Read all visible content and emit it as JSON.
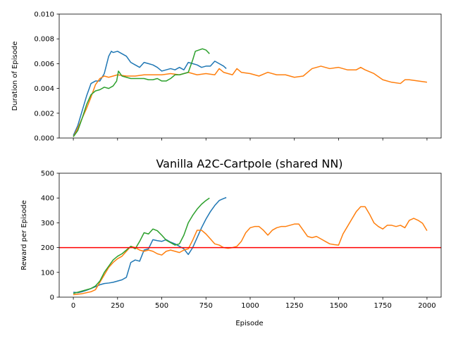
{
  "chart_data": [
    {
      "type": "line",
      "title": "",
      "xlabel": "",
      "ylabel": "Duration of Episode",
      "xlim": [
        -80,
        2080
      ],
      "ylim": [
        0,
        0.01
      ],
      "xticks": [
        0,
        250,
        500,
        750,
        1000,
        1250,
        1500,
        1750,
        2000
      ],
      "xtick_labels_visible": false,
      "yticks": [
        0,
        0.002,
        0.004,
        0.006,
        0.008,
        0.01
      ],
      "ytick_labels": [
        "0.000",
        "0.002",
        "0.004",
        "0.006",
        "0.008",
        "0.010"
      ],
      "grid": false,
      "legend": null,
      "series": [
        {
          "color": "#1f77b4",
          "x": [
            0,
            25,
            50,
            75,
            100,
            125,
            150,
            175,
            200,
            215,
            225,
            250,
            275,
            300,
            325,
            350,
            375,
            400,
            425,
            450,
            475,
            500,
            525,
            550,
            575,
            600,
            625,
            650,
            675,
            700,
            725,
            750,
            775,
            800,
            825,
            850,
            865
          ],
          "y": [
            0.0002,
            0.001,
            0.0022,
            0.0034,
            0.0044,
            0.0046,
            0.0046,
            0.0052,
            0.0066,
            0.007,
            0.0069,
            0.007,
            0.0068,
            0.0066,
            0.0061,
            0.0059,
            0.0057,
            0.0061,
            0.006,
            0.0059,
            0.0057,
            0.0054,
            0.0055,
            0.0056,
            0.0055,
            0.0057,
            0.0055,
            0.0061,
            0.006,
            0.0059,
            0.0057,
            0.0058,
            0.0058,
            0.0062,
            0.006,
            0.0058,
            0.0056
          ]
        },
        {
          "color": "#ff7f0e",
          "x": [
            0,
            25,
            50,
            75,
            100,
            125,
            150,
            175,
            200,
            225,
            250,
            300,
            350,
            400,
            450,
            500,
            550,
            600,
            650,
            700,
            750,
            800,
            825,
            850,
            900,
            925,
            950,
            1000,
            1050,
            1100,
            1150,
            1200,
            1250,
            1300,
            1325,
            1350,
            1400,
            1450,
            1500,
            1550,
            1600,
            1625,
            1650,
            1700,
            1750,
            1800,
            1850,
            1875,
            1900,
            1950,
            2000
          ],
          "y": [
            0.0001,
            0.0008,
            0.0016,
            0.0024,
            0.0033,
            0.0043,
            0.0048,
            0.005,
            0.0049,
            0.005,
            0.0051,
            0.005,
            0.005,
            0.0051,
            0.0051,
            0.0051,
            0.0052,
            0.0051,
            0.0053,
            0.0051,
            0.0052,
            0.0051,
            0.0056,
            0.0053,
            0.0051,
            0.0056,
            0.0053,
            0.0052,
            0.005,
            0.0053,
            0.0051,
            0.0051,
            0.0049,
            0.005,
            0.0053,
            0.0056,
            0.0058,
            0.0056,
            0.0057,
            0.0055,
            0.0055,
            0.0057,
            0.0055,
            0.0052,
            0.0047,
            0.0045,
            0.0044,
            0.0047,
            0.0047,
            0.0046,
            0.0045
          ]
        },
        {
          "color": "#2ca02c",
          "x": [
            0,
            25,
            50,
            75,
            100,
            125,
            150,
            175,
            200,
            225,
            245,
            255,
            275,
            300,
            325,
            350,
            375,
            400,
            425,
            450,
            475,
            500,
            525,
            550,
            575,
            600,
            625,
            650,
            675,
            690,
            710,
            730,
            750,
            770
          ],
          "y": [
            0.0001,
            0.0006,
            0.0016,
            0.0027,
            0.0035,
            0.0038,
            0.0039,
            0.0041,
            0.004,
            0.0042,
            0.0046,
            0.0054,
            0.005,
            0.0049,
            0.0048,
            0.0048,
            0.0048,
            0.0048,
            0.0047,
            0.0047,
            0.0048,
            0.0046,
            0.0046,
            0.0048,
            0.0051,
            0.0051,
            0.0052,
            0.0053,
            0.0063,
            0.007,
            0.0071,
            0.0072,
            0.0071,
            0.0068
          ]
        }
      ]
    },
    {
      "type": "line",
      "title": "Vanilla A2C-Cartpole (shared NN)",
      "xlabel": "Episode",
      "ylabel": "Reward per Episode",
      "xlim": [
        -80,
        2080
      ],
      "ylim": [
        0,
        500
      ],
      "xticks": [
        0,
        250,
        500,
        750,
        1000,
        1250,
        1500,
        1750,
        2000
      ],
      "xtick_labels": [
        "0",
        "250",
        "500",
        "750",
        "1000",
        "1250",
        "1500",
        "1750",
        "2000"
      ],
      "yticks": [
        0,
        100,
        200,
        300,
        400,
        500
      ],
      "ytick_labels": [
        "0",
        "100",
        "200",
        "300",
        "400",
        "500"
      ],
      "grid": false,
      "legend": null,
      "hlines": [
        {
          "y": 200,
          "color": "#ff0000"
        }
      ],
      "series": [
        {
          "color": "#1f77b4",
          "x": [
            0,
            25,
            50,
            75,
            100,
            125,
            150,
            175,
            200,
            225,
            250,
            275,
            300,
            325,
            350,
            375,
            400,
            425,
            450,
            475,
            500,
            525,
            550,
            575,
            600,
            625,
            650,
            675,
            700,
            725,
            750,
            775,
            800,
            825,
            850,
            865
          ],
          "y": [
            20,
            18,
            22,
            28,
            35,
            42,
            50,
            55,
            57,
            60,
            65,
            70,
            80,
            140,
            150,
            145,
            190,
            195,
            232,
            228,
            225,
            232,
            222,
            215,
            205,
            195,
            172,
            200,
            240,
            280,
            315,
            345,
            370,
            390,
            398,
            402
          ]
        },
        {
          "color": "#ff7f0e",
          "x": [
            0,
            25,
            50,
            75,
            100,
            125,
            150,
            175,
            200,
            225,
            250,
            275,
            300,
            325,
            350,
            375,
            400,
            425,
            450,
            475,
            500,
            525,
            550,
            575,
            600,
            625,
            650,
            675,
            700,
            725,
            750,
            775,
            800,
            825,
            850,
            875,
            900,
            925,
            950,
            975,
            1000,
            1025,
            1050,
            1075,
            1100,
            1125,
            1150,
            1175,
            1200,
            1225,
            1250,
            1275,
            1300,
            1325,
            1350,
            1375,
            1400,
            1425,
            1450,
            1475,
            1500,
            1525,
            1550,
            1575,
            1600,
            1625,
            1650,
            1675,
            1700,
            1725,
            1750,
            1775,
            1800,
            1825,
            1850,
            1875,
            1900,
            1925,
            1950,
            1975,
            2000
          ],
          "y": [
            10,
            12,
            14,
            18,
            22,
            30,
            60,
            90,
            120,
            140,
            155,
            165,
            185,
            205,
            200,
            190,
            185,
            190,
            185,
            175,
            170,
            185,
            190,
            185,
            180,
            190,
            195,
            230,
            270,
            270,
            255,
            235,
            215,
            210,
            200,
            197,
            200,
            205,
            225,
            260,
            280,
            285,
            285,
            270,
            250,
            270,
            280,
            285,
            285,
            290,
            295,
            295,
            270,
            245,
            240,
            245,
            235,
            225,
            215,
            212,
            210,
            255,
            285,
            315,
            345,
            365,
            365,
            335,
            300,
            285,
            275,
            290,
            290,
            285,
            290,
            280,
            310,
            318,
            310,
            298,
            268
          ]
        },
        {
          "color": "#2ca02c",
          "x": [
            0,
            25,
            50,
            75,
            100,
            125,
            150,
            175,
            200,
            225,
            250,
            275,
            300,
            325,
            350,
            375,
            400,
            425,
            450,
            475,
            500,
            525,
            550,
            575,
            600,
            625,
            650,
            675,
            700,
            725,
            750,
            770
          ],
          "y": [
            15,
            20,
            25,
            30,
            35,
            45,
            65,
            100,
            125,
            150,
            165,
            175,
            190,
            205,
            195,
            225,
            260,
            255,
            275,
            268,
            250,
            230,
            220,
            210,
            215,
            250,
            300,
            330,
            355,
            375,
            390,
            400
          ]
        }
      ]
    }
  ]
}
